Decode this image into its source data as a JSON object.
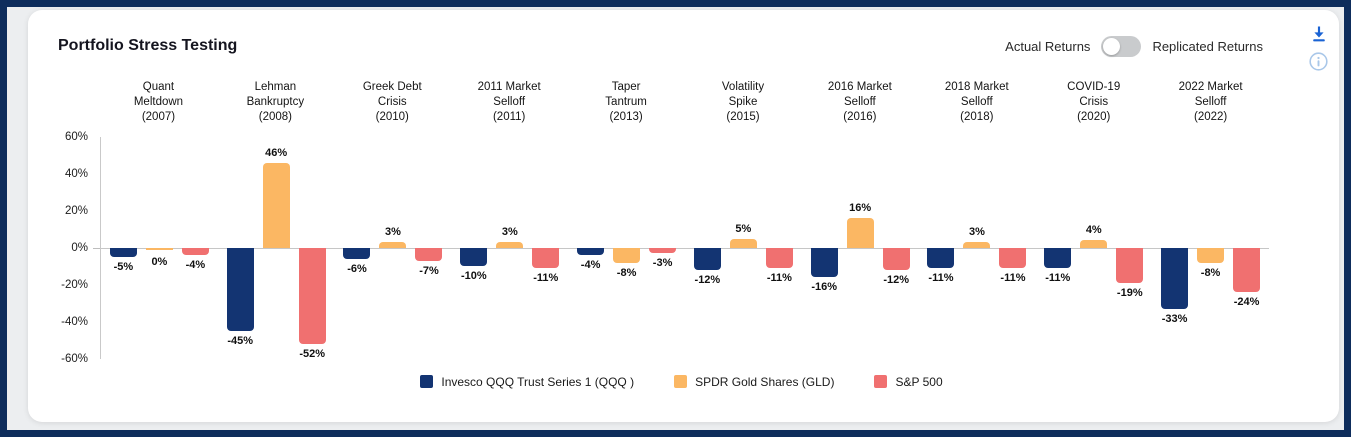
{
  "card": {
    "title": "Portfolio Stress Testing",
    "controls": {
      "toggle_left_label": "Actual Returns",
      "toggle_right_label": "Replicated Returns",
      "toggle_state": "left"
    }
  },
  "icons": {
    "download": "download-icon",
    "info": "info-icon"
  },
  "colors": {
    "frame": "#0e2d5c",
    "page_bg": "#eceef0",
    "card_bg": "#ffffff",
    "axis_line": "#c9c9c9",
    "text": "#141414",
    "download_icon": "#1a63d4",
    "info_icon": "#a9c7e9",
    "toggle_track": "#c9cbcd",
    "toggle_knob": "#ffffff"
  },
  "chart_data": {
    "type": "bar",
    "title": "Portfolio Stress Testing",
    "categories": [
      "Quant\nMeltdown\n(2007)",
      "Lehman\nBankruptcy\n(2008)",
      "Greek Debt\nCrisis\n(2010)",
      "2011 Market\nSelloff\n(2011)",
      "Taper\nTantrum\n(2013)",
      "Volatility\nSpike\n(2015)",
      "2016 Market\nSelloff\n(2016)",
      "2018 Market\nSelloff\n(2018)",
      "COVID-19\nCrisis\n(2020)",
      "2022 Market\nSelloff\n(2022)"
    ],
    "series": [
      {
        "name": "Invesco QQQ Trust Series 1 (QQQ )",
        "color": "#133472",
        "values": [
          -5,
          -45,
          -6,
          -10,
          -4,
          -12,
          -16,
          -11,
          -11,
          -33
        ]
      },
      {
        "name": "SPDR Gold Shares (GLD)",
        "color": "#fbb763",
        "values": [
          0,
          46,
          3,
          3,
          -8,
          5,
          16,
          3,
          4,
          -8
        ]
      },
      {
        "name": "S&P 500",
        "color": "#f07070",
        "values": [
          -4,
          -52,
          -7,
          -11,
          -3,
          -11,
          -12,
          -11,
          -19,
          -24
        ]
      }
    ],
    "ylim": [
      -60,
      60
    ],
    "ytick_labels": [
      "60%",
      "40%",
      "20%",
      "0%",
      "-20%",
      "-40%",
      "-60%"
    ],
    "value_label_suffix": "%",
    "grid": false,
    "legend_position": "bottom"
  }
}
